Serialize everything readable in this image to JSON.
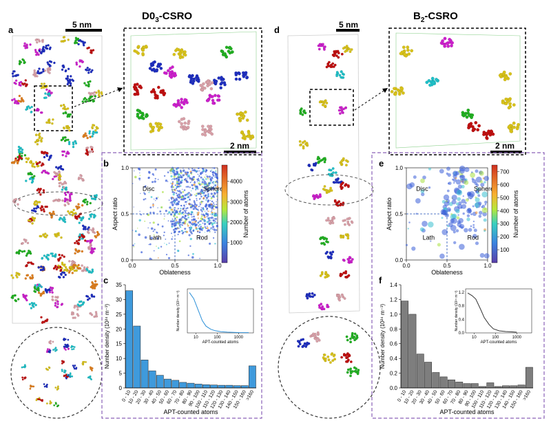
{
  "left_panel": {
    "title": "D0",
    "title_sub": "3",
    "title_suffix": "-CSRO",
    "label_a": "a",
    "scale_main": "5 nm",
    "scale_zoom": "2 nm",
    "label_b": "b",
    "label_c": "c"
  },
  "right_panel": {
    "title": "B",
    "title_sub": "2",
    "title_suffix": "-CSRO",
    "label_d": "d",
    "scale_main": "5 nm",
    "scale_zoom": "2 nm",
    "label_e": "e",
    "label_f": "f"
  },
  "colors": {
    "blue": "#1f2fbf",
    "red": "#c01010",
    "green": "#22b022",
    "yellow": "#d8c21a",
    "magenta": "#cc20cc",
    "cyan": "#20c0c8",
    "pink": "#d8a0a8",
    "orange": "#e08020",
    "bar_blue": "#2a8fd8",
    "bar_gray": "#707070",
    "dashed_frame": "#8a62b8"
  },
  "chart_data": [
    {
      "id": "b",
      "type": "scatter",
      "xlabel": "Oblateness",
      "ylabel": "Aspect ratio",
      "xlim": [
        0,
        1
      ],
      "ylim": [
        0,
        1
      ],
      "xticks": [
        "0.0",
        "0.5",
        "1.0"
      ],
      "yticks": [
        "0.0",
        "0.5",
        "1.0"
      ],
      "region_labels": [
        "Disc",
        "Sphere",
        "Lath",
        "Rod"
      ],
      "colorbar_label": "Number of atoms",
      "colorbar_ticks": [
        "1000",
        "2000",
        "3000",
        "4000"
      ],
      "colorbar_range": [
        0,
        4800
      ]
    },
    {
      "id": "c",
      "type": "bar",
      "ylabel": "Number density (10²⁴ m⁻³)",
      "xlabel": "APT-counted atoms",
      "categories": [
        "0 - 10",
        "10 - 20",
        "20 - 30",
        "30 - 40",
        "40 - 50",
        "50 - 60",
        "60 - 70",
        "70 - 80",
        "80 - 90",
        "90 - 100",
        "100 - 110",
        "110 - 120",
        "120 - 130",
        "130 - 140",
        "140 - 150",
        "150 - 160",
        ">160"
      ],
      "values": [
        33,
        21,
        9.5,
        5.8,
        4.3,
        3.0,
        2.6,
        1.9,
        1.6,
        1.3,
        1.1,
        1.0,
        0.9,
        0.9,
        0.8,
        0.8,
        7.5
      ],
      "ylim": [
        0,
        35
      ],
      "yticks": [
        "0",
        "5",
        "10",
        "15",
        "20",
        "25",
        "30",
        "35"
      ],
      "inset": {
        "ylabel": "Number density (10²⁴ m⁻³)",
        "xlabel": "APT-counted atoms",
        "xticks": [
          "10",
          "100",
          "1000"
        ],
        "x": [
          5,
          8,
          12,
          20,
          30,
          50,
          80,
          150,
          300,
          1000,
          3000
        ],
        "y": [
          33,
          28,
          20,
          10,
          5.5,
          3,
          1.8,
          1.0,
          0.6,
          0.3,
          0.2
        ]
      }
    },
    {
      "id": "e",
      "type": "scatter",
      "xlabel": "Oblateness",
      "ylabel": "Aspect ratio",
      "xlim": [
        0,
        1
      ],
      "ylim": [
        0,
        1
      ],
      "xticks": [
        "0.0",
        "0.5",
        "1.0"
      ],
      "yticks": [
        "0.0",
        "0.5",
        "1.0"
      ],
      "region_labels": [
        "Disc",
        "Sphere",
        "Lath",
        "Rod"
      ],
      "colorbar_label": "Number of atoms",
      "colorbar_ticks": [
        "100",
        "200",
        "300",
        "400",
        "500",
        "600",
        "700"
      ],
      "colorbar_range": [
        0,
        750
      ]
    },
    {
      "id": "f",
      "type": "bar",
      "ylabel": "Number density (10²⁴ m⁻³)",
      "xlabel": "APT-counted atoms",
      "categories": [
        "0 - 10",
        "10 - 20",
        "20 - 30",
        "30 - 40",
        "40 - 50",
        "50 - 60",
        "60 - 70",
        "70 - 80",
        "80 - 90",
        "90 - 100",
        "100 - 110",
        "110 - 120",
        "120 - 130",
        "130 - 140",
        "140 - 150",
        "150 - 160",
        ">160"
      ],
      "values": [
        1.18,
        1.0,
        0.46,
        0.35,
        0.21,
        0.15,
        0.11,
        0.08,
        0.06,
        0.06,
        0.02,
        0.07,
        0.02,
        0.03,
        0.03,
        0.04,
        0.28
      ],
      "ylim": [
        0,
        1.4
      ],
      "yticks": [
        "0.0",
        "0.2",
        "0.4",
        "0.6",
        "0.8",
        "1.0",
        "1.2",
        "1.4"
      ],
      "inset": {
        "ylabel": "Number density (10²⁴ m⁻³)",
        "xlabel": "APT-counted atoms",
        "xticks": [
          "10",
          "100",
          "1000"
        ],
        "yticks": [
          "0.0",
          "0.4",
          "0.8",
          "1.2"
        ],
        "x": [
          5,
          8,
          12,
          20,
          30,
          50,
          80,
          150,
          300,
          600,
          1000
        ],
        "y": [
          1.18,
          1.1,
          1.0,
          0.7,
          0.45,
          0.25,
          0.12,
          0.06,
          0.04,
          0.03,
          0.02
        ]
      }
    }
  ]
}
